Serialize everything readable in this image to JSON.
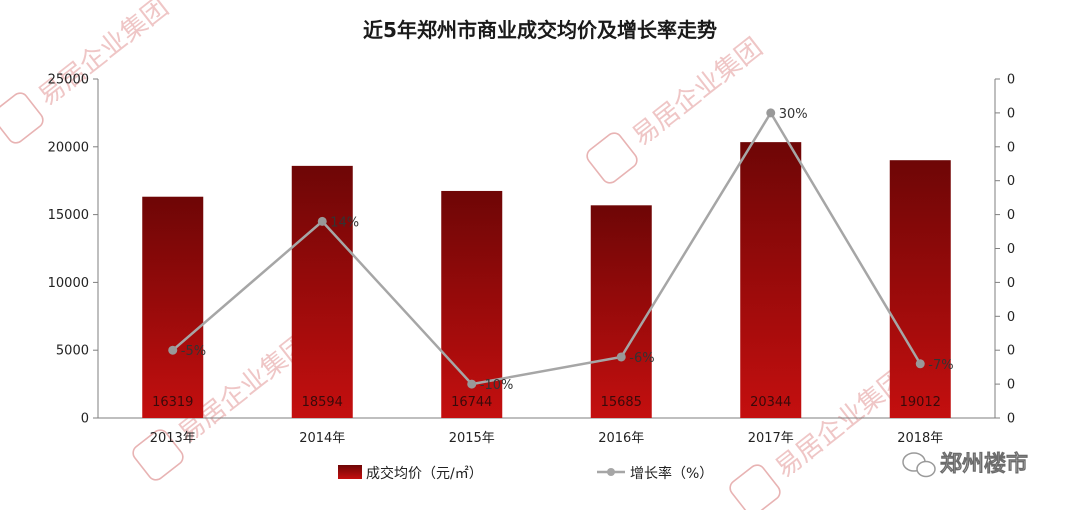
{
  "chart_data": {
    "type": "bar",
    "title": "近5年郑州市商业成交均价及增长率走势",
    "categories": [
      "2013年",
      "2014年",
      "2015年",
      "2016年",
      "2017年",
      "2018年"
    ],
    "series": [
      {
        "name": "成交均价（元/㎡）",
        "type": "bar",
        "axis": "left",
        "values": [
          16319,
          18594,
          16744,
          15685,
          20344,
          19012
        ],
        "color": "#b80f0f",
        "color_top": "#6e0606"
      },
      {
        "name": "增长率（%）",
        "type": "line",
        "axis": "right",
        "values": [
          -5,
          14,
          -10,
          -6,
          30,
          -7
        ],
        "labels": [
          "-5%",
          "14%",
          "-10%",
          "-6%",
          "30%",
          "-7%"
        ],
        "color": "#a6a6a6"
      }
    ],
    "left_axis": {
      "ylim": [
        0,
        25000
      ],
      "ticks": [
        "0",
        "5000",
        "10000",
        "15000",
        "20000",
        "25000"
      ]
    },
    "right_axis": {
      "ylim": [
        -15,
        35
      ],
      "ticks": [
        "0",
        "0",
        "0",
        "0",
        "0",
        "0",
        "0",
        "0",
        "0",
        "0",
        "0"
      ]
    },
    "legend": {
      "position": "bottom"
    },
    "grid": false
  },
  "branding": {
    "watermark": "易居企业集团",
    "account": "郑州楼市"
  }
}
